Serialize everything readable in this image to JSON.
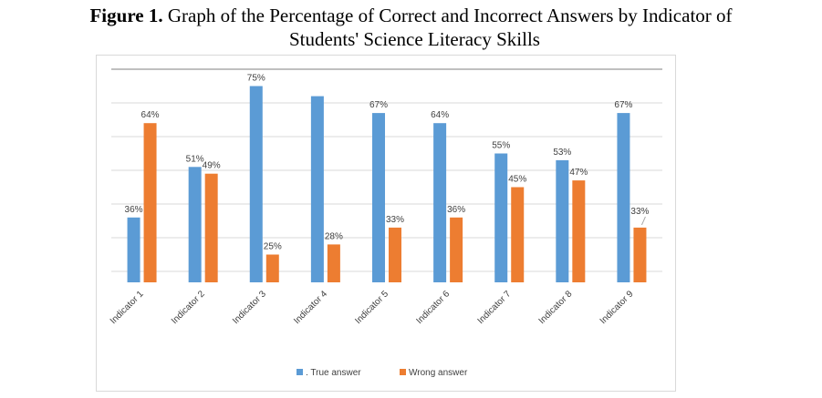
{
  "caption": {
    "label": "Figure 1.",
    "text_line1": "Graph of the Percentage of Correct and Incorrect Answers by Indicator of",
    "text_line2": "Students' Science Literacy Skills"
  },
  "colors": {
    "true_answer": "#5b9bd5",
    "wrong_answer": "#ed7d31",
    "gridline": "#d9d9d9",
    "top_line": "#7f7f7f"
  },
  "chart_data": {
    "type": "bar",
    "title": "",
    "xlabel": "",
    "ylabel": "",
    "ylim": [
      20,
      80
    ],
    "grid": true,
    "legend_position": "bottom",
    "categories": [
      "Indicator 1",
      "Indicator 2",
      "Indicator 3",
      "Indicator 4",
      "Indicator 5",
      "Indicator 6",
      "Indicator 7",
      "Indicator 8",
      "Indicator 9"
    ],
    "series": [
      {
        "name": ". True answer",
        "values": [
          36,
          51,
          75,
          72,
          67,
          64,
          55,
          53,
          67
        ],
        "labels": [
          "36%",
          "51%",
          "75%",
          "",
          "67%",
          "64%",
          "55%",
          "53%",
          "67%"
        ]
      },
      {
        "name": "Wrong answer",
        "values": [
          64,
          49,
          25,
          28,
          33,
          36,
          45,
          47,
          33
        ],
        "labels": [
          "64%",
          "49%",
          "25%",
          "28%",
          "33%",
          "36%",
          "45%",
          "47%",
          "33%"
        ]
      }
    ]
  }
}
